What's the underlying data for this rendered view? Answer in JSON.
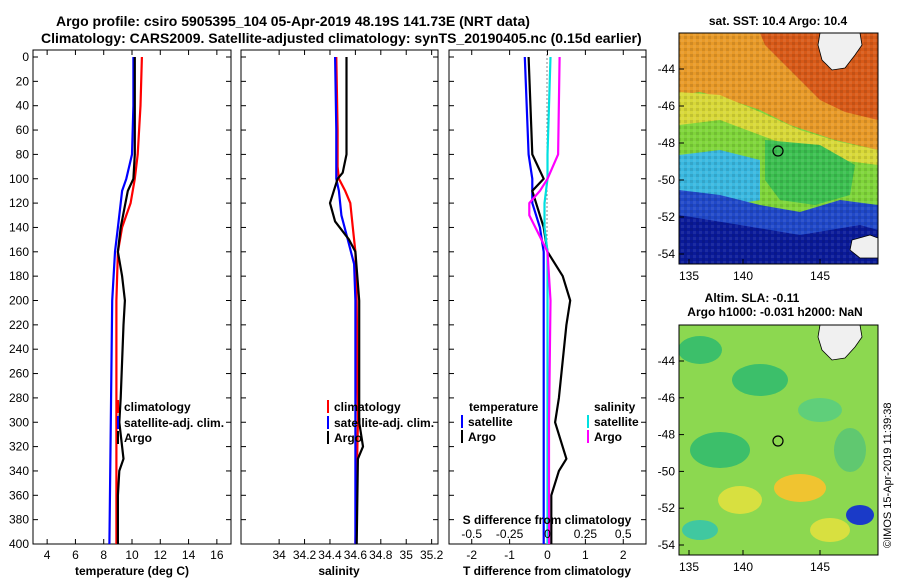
{
  "header": {
    "line1": "Argo profile: csiro 5905395_104 05-Apr-2019 48.19S 141.73E (NRT data)",
    "line2": "Climatology: CARS2009. Satellite-adjusted climatology: synTS_20190405.nc (0.15d earlier)"
  },
  "colors": {
    "climatology": "#ff0000",
    "satellite": "#0000ff",
    "argo": "#000000",
    "s_satellite": "#00e0e0",
    "s_argo": "#ff00ff"
  },
  "depth_axis": {
    "ylim": [
      0,
      400
    ],
    "ticks": [
      "0",
      "20",
      "40",
      "60",
      "80",
      "100",
      "120",
      "140",
      "160",
      "180",
      "200",
      "220",
      "240",
      "260",
      "280",
      "300",
      "320",
      "340",
      "360",
      "380",
      "400"
    ]
  },
  "chart_data": [
    {
      "id": "temperature",
      "type": "line",
      "xlabel": "temperature (deg C)",
      "xlim": [
        3,
        17
      ],
      "xticks": [
        "4",
        "6",
        "8",
        "10",
        "12",
        "14",
        "16"
      ],
      "ylim": [
        0,
        400
      ],
      "legend": [
        "climatology",
        "satellite-adj. clim.",
        "Argo"
      ],
      "series": [
        {
          "name": "climatology",
          "color": "#ff0000",
          "depth": [
            0,
            40,
            80,
            100,
            120,
            130,
            140,
            160,
            200,
            300,
            400
          ],
          "values": [
            10.7,
            10.6,
            10.4,
            10.2,
            9.9,
            9.6,
            9.3,
            9.0,
            8.9,
            8.9,
            8.9
          ]
        },
        {
          "name": "satellite-adj. clim.",
          "color": "#0000ff",
          "depth": [
            0,
            40,
            80,
            100,
            110,
            120,
            140,
            160,
            200,
            300,
            400
          ],
          "values": [
            10.1,
            10.1,
            10.0,
            9.6,
            9.3,
            9.2,
            9.0,
            8.8,
            8.6,
            8.5,
            8.4
          ]
        },
        {
          "name": "Argo",
          "color": "#000000",
          "depth": [
            0,
            40,
            80,
            100,
            110,
            140,
            160,
            180,
            200,
            220,
            280,
            300,
            330,
            340,
            360,
            380,
            400
          ],
          "values": [
            10.2,
            10.2,
            10.2,
            10.1,
            9.7,
            9.2,
            9.0,
            9.3,
            9.5,
            9.4,
            9.2,
            9.1,
            9.4,
            9.1,
            9.0,
            9.0,
            9.0
          ]
        }
      ]
    },
    {
      "id": "salinity",
      "type": "line",
      "xlabel": "salinity",
      "xlim": [
        33.7,
        35.25
      ],
      "xticks": [
        "34",
        "34.2",
        "34.4",
        "34.6",
        "34.8",
        "35",
        "35.2"
      ],
      "ylim": [
        0,
        400
      ],
      "legend": [
        "climatology",
        "satellite-adj. clim.",
        "Argo"
      ],
      "series": [
        {
          "name": "climatology",
          "color": "#ff0000",
          "depth": [
            0,
            60,
            90,
            100,
            110,
            120,
            140,
            150,
            160,
            200,
            300,
            400
          ],
          "values": [
            34.45,
            34.46,
            34.46,
            34.47,
            34.52,
            34.56,
            34.58,
            34.59,
            34.6,
            34.61,
            34.62,
            34.6
          ],
          "x_hint": "ignore"
        },
        {
          "name": "satellite-adj. clim.",
          "color": "#0000ff",
          "depth": [
            0,
            60,
            100,
            110,
            130,
            150,
            170,
            200,
            300,
            400
          ],
          "values": [
            34.44,
            34.45,
            34.45,
            34.47,
            34.49,
            34.54,
            34.59,
            34.6,
            34.6,
            34.6
          ]
        },
        {
          "name": "Argo",
          "color": "#000000",
          "depth": [
            0,
            80,
            95,
            100,
            110,
            120,
            135,
            150,
            160,
            200,
            300,
            320,
            330,
            400
          ],
          "values": [
            34.53,
            34.53,
            34.5,
            34.46,
            34.43,
            34.4,
            34.44,
            34.55,
            34.6,
            34.63,
            34.63,
            34.66,
            34.62,
            34.61
          ]
        }
      ]
    },
    {
      "id": "difference",
      "type": "line",
      "xlabel": "T difference from climatology",
      "xlabel_top": "S difference from climatology",
      "xlim": [
        -2.6,
        2.6
      ],
      "xticks": [
        "-2",
        "-1",
        "0",
        "1",
        "2"
      ],
      "top_xticks": [
        "-0.5",
        "-0.25",
        "0",
        "0.25",
        "0.5"
      ],
      "ylim": [
        0,
        400
      ],
      "legend_t_title": "temperature",
      "legend_t": [
        "satellite",
        "Argo"
      ],
      "legend_s_title": "salinity",
      "legend_s": [
        "satellite",
        "Argo"
      ],
      "series": [
        {
          "name": "T satellite",
          "color": "#0000ff",
          "depth": [
            0,
            80,
            100,
            120,
            140,
            160,
            200,
            400
          ],
          "values": [
            -0.6,
            -0.5,
            -0.4,
            -0.4,
            -0.2,
            -0.1,
            -0.1,
            -0.1
          ]
        },
        {
          "name": "T Argo",
          "color": "#000000",
          "depth": [
            0,
            80,
            100,
            110,
            140,
            160,
            180,
            200,
            220,
            280,
            300,
            330,
            340,
            360,
            380,
            400
          ],
          "values": [
            -0.5,
            -0.4,
            -0.1,
            -0.4,
            -0.1,
            0.0,
            0.4,
            0.6,
            0.5,
            0.3,
            0.2,
            0.5,
            0.3,
            0.1,
            0.1,
            0.1
          ]
        },
        {
          "name": "S satellite",
          "color": "#00e0e0",
          "depth": [
            0,
            80,
            100,
            120,
            140,
            160,
            200,
            400
          ],
          "values": [
            0.02,
            0.0,
            0.0,
            -0.02,
            -0.02,
            0.0,
            0.0,
            0.0
          ]
        },
        {
          "name": "S Argo",
          "color": "#ff00ff",
          "depth": [
            0,
            80,
            100,
            110,
            120,
            130,
            160,
            200,
            300,
            400
          ],
          "values": [
            0.08,
            0.07,
            0.0,
            -0.05,
            -0.12,
            -0.12,
            0.0,
            0.02,
            0.01,
            0.01
          ]
        }
      ]
    }
  ],
  "maps": {
    "sst": {
      "title": "sat. SST: 10.4 Argo: 10.4",
      "yticks": [
        "-44",
        "-46",
        "-48",
        "-50",
        "-52",
        "-54"
      ],
      "xticks": [
        "135",
        "140",
        "145"
      ]
    },
    "sla": {
      "title1": "Altim. SLA: -0.11",
      "title2": "Argo h1000: -0.031 h2000: NaN",
      "yticks": [
        "-44",
        "-46",
        "-48",
        "-50",
        "-52",
        "-54"
      ],
      "xticks": [
        "135",
        "140",
        "145"
      ]
    }
  },
  "watermark": "©IMOS 15-Apr-2019 11:39:38"
}
